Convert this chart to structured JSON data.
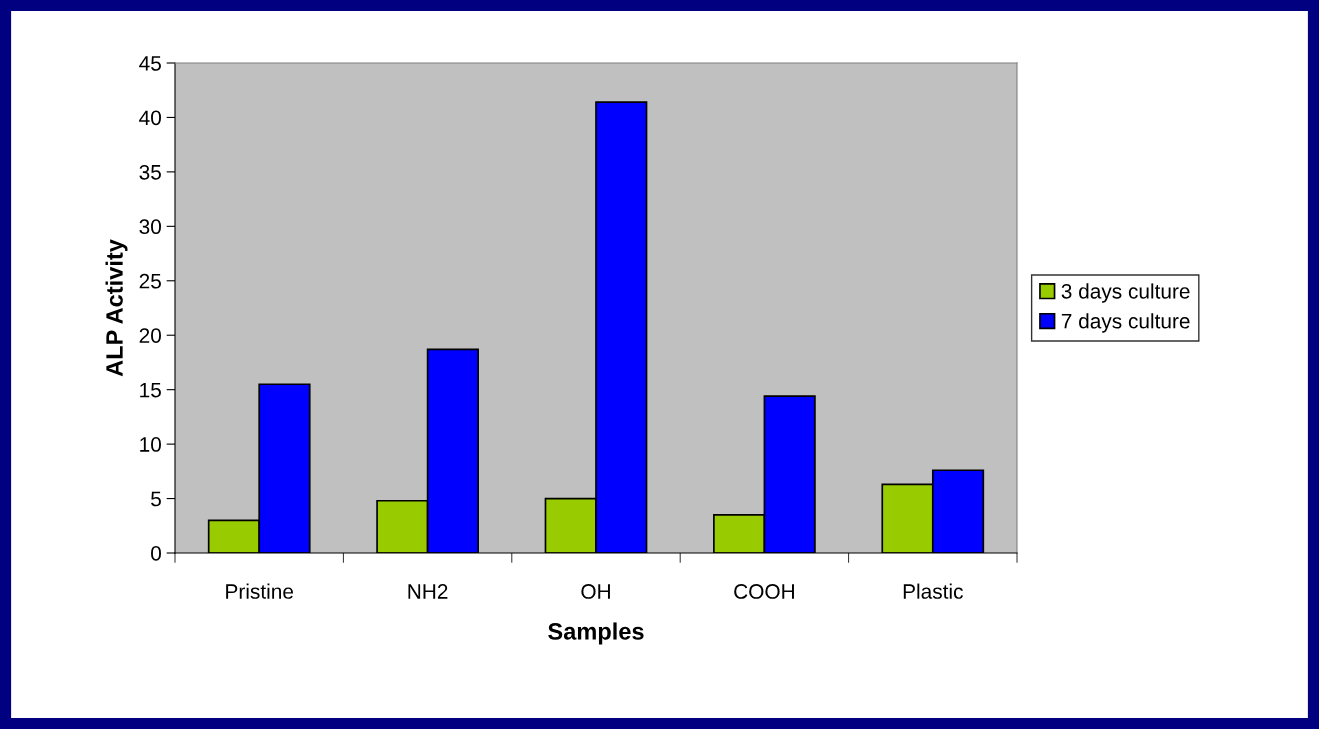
{
  "chart_data": {
    "type": "bar",
    "xlabel": "Samples",
    "ylabel": "ALP Activity",
    "categories": [
      "Pristine",
      "NH2",
      "OH",
      "COOH",
      "Plastic"
    ],
    "series": [
      {
        "name": "3 days culture",
        "color": "#99cc00",
        "values": [
          3.0,
          4.8,
          5.0,
          3.5,
          6.3
        ]
      },
      {
        "name": "7 days culture",
        "color": "#0000ff",
        "values": [
          15.5,
          18.7,
          41.4,
          14.4,
          7.6
        ]
      }
    ],
    "ylim": [
      0,
      45
    ],
    "yticks": [
      0,
      5,
      10,
      15,
      20,
      25,
      30,
      35,
      40,
      45
    ],
    "grid": false,
    "legend": "right"
  }
}
